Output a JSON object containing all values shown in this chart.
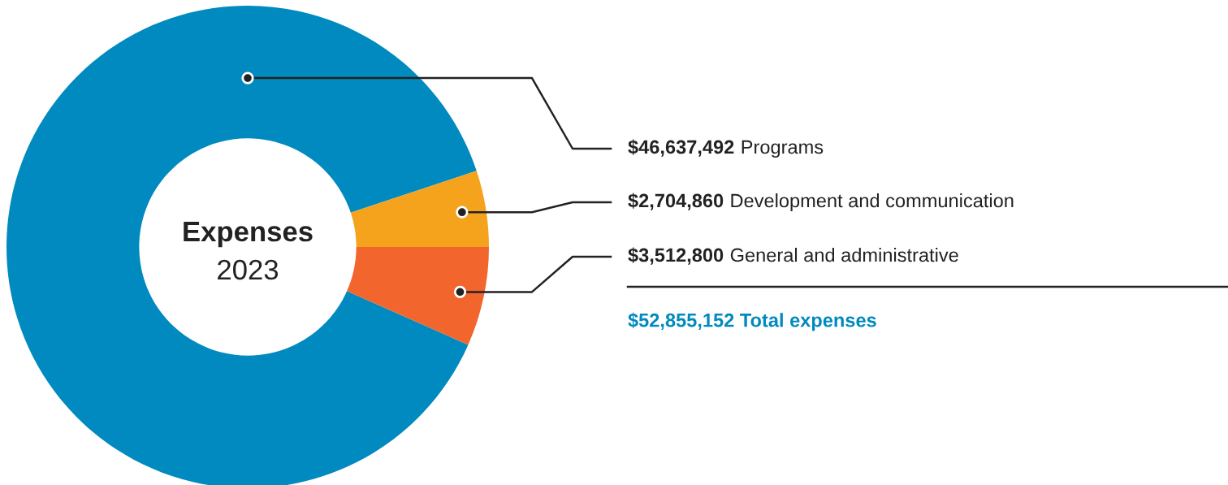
{
  "chart_data": {
    "type": "donut",
    "title": "Expenses",
    "subtitle": "2023",
    "categories": [
      "Programs",
      "Development and communication",
      "General and administrative"
    ],
    "values": [
      46637492,
      2704860,
      3512800
    ],
    "value_labels": [
      "$46,637,492",
      "$2,704,860",
      "$3,512,800"
    ],
    "colors": [
      "#008abf",
      "#f5a31c",
      "#f2652c"
    ],
    "annotations": [
      "$52,855,152 Total expenses"
    ]
  }
}
